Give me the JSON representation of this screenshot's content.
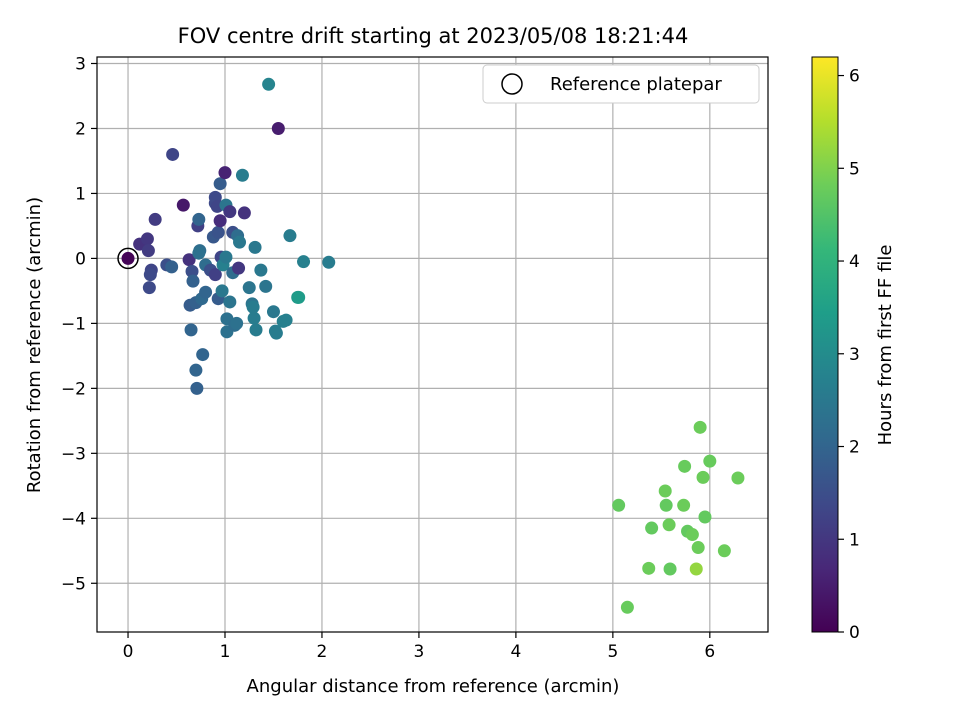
{
  "chart_data": {
    "type": "scatter",
    "title": "FOV centre drift starting at 2023/05/08 18:21:44",
    "xlabel": "Angular distance from reference (arcmin)",
    "ylabel": "Rotation from reference (arcmin)",
    "xlim": [
      -0.32,
      6.6
    ],
    "ylim": [
      -5.75,
      3.1
    ],
    "xticks": [
      "0",
      "1",
      "2",
      "3",
      "4",
      "5",
      "6"
    ],
    "yticks": [
      "−5",
      "−4",
      "−3",
      "−2",
      "−1",
      "0",
      "1",
      "2",
      "3"
    ],
    "grid": true,
    "legend": {
      "position": "top-right",
      "entries": [
        "Reference platepar"
      ]
    },
    "reference_point": {
      "x": 0,
      "y": 0
    },
    "colorbar": {
      "label": "Hours from first FF file",
      "range": [
        0,
        6.2
      ],
      "ticks": [
        "0",
        "1",
        "2",
        "3",
        "4",
        "5",
        "6"
      ],
      "colormap": "viridis"
    },
    "columns": [
      "x",
      "y",
      "hours"
    ],
    "points": [
      [
        0.0,
        0.0,
        0.05
      ],
      [
        0.12,
        0.22,
        0.9
      ],
      [
        0.2,
        0.3,
        1.0
      ],
      [
        0.21,
        0.12,
        1.1
      ],
      [
        0.24,
        -0.18,
        1.3
      ],
      [
        0.23,
        -0.25,
        1.4
      ],
      [
        0.22,
        -0.45,
        1.4
      ],
      [
        0.28,
        0.6,
        1.1
      ],
      [
        0.4,
        -0.1,
        1.5
      ],
      [
        0.45,
        -0.13,
        1.9
      ],
      [
        0.46,
        1.6,
        1.3
      ],
      [
        0.57,
        0.82,
        0.4
      ],
      [
        0.63,
        -0.02,
        0.9
      ],
      [
        0.66,
        -0.2,
        1.5
      ],
      [
        0.67,
        -0.35,
        1.9
      ],
      [
        0.64,
        -0.72,
        1.8
      ],
      [
        0.65,
        -1.1,
        2.0
      ],
      [
        0.7,
        -0.68,
        1.9
      ],
      [
        0.72,
        0.5,
        1.2
      ],
      [
        0.73,
        0.6,
        2.0
      ],
      [
        0.74,
        0.12,
        2.2
      ],
      [
        0.73,
        0.08,
        2.3
      ],
      [
        0.76,
        -0.62,
        2.1
      ],
      [
        0.77,
        -1.48,
        2.0
      ],
      [
        0.7,
        -1.72,
        2.0
      ],
      [
        0.71,
        -2.0,
        1.9
      ],
      [
        0.8,
        -0.1,
        2.2
      ],
      [
        0.8,
        -0.52,
        2.0
      ],
      [
        0.85,
        -0.18,
        1.5
      ],
      [
        0.88,
        0.33,
        1.7
      ],
      [
        0.9,
        0.85,
        1.4
      ],
      [
        0.9,
        0.94,
        1.4
      ],
      [
        0.92,
        0.8,
        1.3
      ],
      [
        0.9,
        -0.25,
        1.2
      ],
      [
        0.93,
        0.4,
        1.6
      ],
      [
        0.93,
        -0.62,
        1.8
      ],
      [
        0.95,
        1.15,
        1.8
      ],
      [
        0.95,
        0.58,
        0.8
      ],
      [
        0.96,
        0.02,
        1.3
      ],
      [
        0.97,
        -0.5,
        2.5
      ],
      [
        0.98,
        -0.1,
        2.7
      ],
      [
        1.0,
        1.32,
        0.6
      ],
      [
        1.01,
        0.82,
        2.4
      ],
      [
        1.01,
        0.02,
        2.5
      ],
      [
        1.02,
        -0.93,
        2.3
      ],
      [
        1.02,
        -1.13,
        2.3
      ],
      [
        1.05,
        0.72,
        1.0
      ],
      [
        1.05,
        -0.67,
        2.4
      ],
      [
        1.08,
        0.4,
        1.5
      ],
      [
        1.08,
        -0.22,
        2.2
      ],
      [
        1.1,
        -1.03,
        2.2
      ],
      [
        1.12,
        -1.0,
        2.3
      ],
      [
        1.13,
        0.35,
        2.2
      ],
      [
        1.14,
        -0.15,
        1.0
      ],
      [
        1.15,
        0.25,
        2.5
      ],
      [
        1.18,
        1.28,
        2.6
      ],
      [
        1.2,
        0.7,
        0.9
      ],
      [
        1.25,
        -0.45,
        2.4
      ],
      [
        1.28,
        -0.7,
        2.4
      ],
      [
        1.29,
        -0.75,
        2.6
      ],
      [
        1.3,
        -0.92,
        2.6
      ],
      [
        1.31,
        0.17,
        2.5
      ],
      [
        1.32,
        -1.1,
        2.6
      ],
      [
        1.37,
        -0.18,
        2.5
      ],
      [
        1.42,
        -0.43,
        2.4
      ],
      [
        1.45,
        2.68,
        2.8
      ],
      [
        1.5,
        -0.82,
        2.5
      ],
      [
        1.52,
        -1.12,
        2.6
      ],
      [
        1.53,
        -1.15,
        2.6
      ],
      [
        1.55,
        2.0,
        0.5
      ],
      [
        1.6,
        -0.97,
        2.7
      ],
      [
        1.63,
        -0.95,
        2.7
      ],
      [
        1.67,
        0.35,
        2.6
      ],
      [
        1.75,
        -0.6,
        3.3
      ],
      [
        1.76,
        -0.6,
        3.4
      ],
      [
        1.81,
        -0.05,
        2.7
      ],
      [
        2.07,
        -0.06,
        2.6
      ],
      [
        5.06,
        -3.8,
        4.7
      ],
      [
        5.15,
        -5.37,
        4.75
      ],
      [
        5.37,
        -4.77,
        4.8
      ],
      [
        5.4,
        -4.15,
        4.7
      ],
      [
        5.54,
        -3.58,
        4.8
      ],
      [
        5.55,
        -3.8,
        4.7
      ],
      [
        5.58,
        -4.1,
        4.8
      ],
      [
        5.59,
        -4.78,
        4.7
      ],
      [
        5.73,
        -3.8,
        4.8
      ],
      [
        5.74,
        -3.2,
        4.75
      ],
      [
        5.77,
        -4.2,
        4.7
      ],
      [
        5.82,
        -4.25,
        4.8
      ],
      [
        5.86,
        -4.78,
        5.2
      ],
      [
        5.88,
        -4.45,
        4.8
      ],
      [
        5.9,
        -2.6,
        4.8
      ],
      [
        5.93,
        -3.37,
        4.8
      ],
      [
        5.95,
        -3.98,
        4.7
      ],
      [
        6.0,
        -3.12,
        4.75
      ],
      [
        6.15,
        -4.5,
        4.8
      ],
      [
        6.29,
        -3.38,
        4.8
      ]
    ]
  }
}
